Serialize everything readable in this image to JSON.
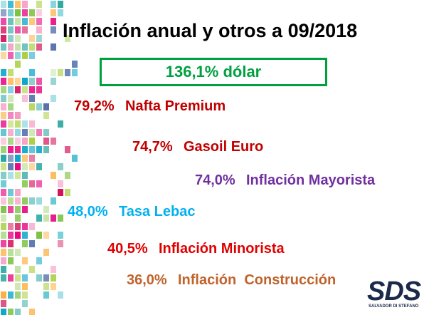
{
  "header": {
    "title": "Inflación anual y otros a 09/2018"
  },
  "highlight": {
    "text": "136,1% dólar",
    "color": "#00a040"
  },
  "items": [
    {
      "value": "79,2%",
      "label": "Nafta Premium",
      "color": "#c00000"
    },
    {
      "value": "74,7%",
      "label": "Gasoil Euro",
      "color": "#c00000"
    },
    {
      "value": "74,0%",
      "label": "Inflación Mayorista",
      "color": "#7030a0"
    },
    {
      "value": "48,0%",
      "label": "Tasa Lebac",
      "color": "#00b0f0"
    },
    {
      "value": "40,5%",
      "label": "Inflación Minorista",
      "color": "#e00000"
    },
    {
      "value": "36,0%",
      "label": "Inflación  Construcción",
      "color": "#c0622a"
    }
  ],
  "logo": {
    "mark": "SDS",
    "caption": "SALVADOR DI STEFANO"
  }
}
